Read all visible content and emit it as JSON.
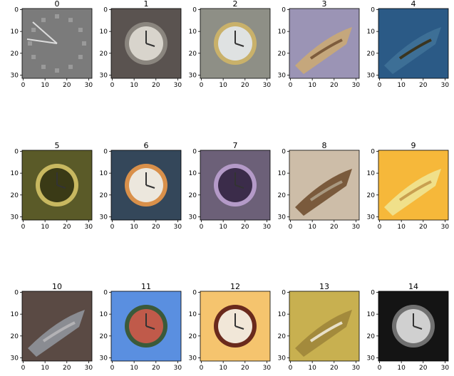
{
  "chart_data": {
    "type": "image-grid",
    "rows": 3,
    "cols": 5,
    "image_size": [
      32,
      32
    ],
    "xticks": [
      0,
      10,
      20,
      30
    ],
    "yticks": [
      0,
      10,
      20,
      30
    ],
    "panels": [
      {
        "title": "0",
        "content": "clock-icon",
        "palette": [
          "#7b7b7b",
          "#9a9a9a",
          "#dcdcdc"
        ]
      },
      {
        "title": "1",
        "content": "clock",
        "palette": [
          "#5a5350",
          "#8a857e",
          "#d8d4cc"
        ]
      },
      {
        "title": "2",
        "content": "clock",
        "palette": [
          "#8e8f86",
          "#c9b16a",
          "#dfe2e2"
        ]
      },
      {
        "title": "3",
        "content": "crocodile",
        "palette": [
          "#9b94b5",
          "#c5a77c",
          "#7d5c3c"
        ]
      },
      {
        "title": "4",
        "content": "crocodile",
        "palette": [
          "#2b5a86",
          "#3d6f96",
          "#3a3520"
        ]
      },
      {
        "title": "5",
        "content": "clock",
        "palette": [
          "#5a5a28",
          "#c8b860",
          "#3a3a16"
        ]
      },
      {
        "title": "6",
        "content": "clock",
        "palette": [
          "#34475a",
          "#d9904a",
          "#ece7dd"
        ]
      },
      {
        "title": "7",
        "content": "clock",
        "palette": [
          "#6c6078",
          "#b49ac8",
          "#3b2c4a"
        ]
      },
      {
        "title": "8",
        "content": "crocodile",
        "palette": [
          "#cdbda8",
          "#7a5a3c",
          "#a89880"
        ]
      },
      {
        "title": "9",
        "content": "crocodile",
        "palette": [
          "#f6b83a",
          "#f0e08a",
          "#c9a050"
        ]
      },
      {
        "title": "10",
        "content": "crocodile",
        "palette": [
          "#5a4a44",
          "#8a8c92",
          "#b3b2b5"
        ]
      },
      {
        "title": "11",
        "content": "street-clock",
        "palette": [
          "#5a8fe0",
          "#3b5a3a",
          "#c05a4a"
        ]
      },
      {
        "title": "12",
        "content": "clock",
        "palette": [
          "#f5c46e",
          "#6a2a1c",
          "#f1e7d8"
        ]
      },
      {
        "title": "13",
        "content": "crocodile",
        "palette": [
          "#c8b050",
          "#a38a3c",
          "#e8e0c8"
        ]
      },
      {
        "title": "14",
        "content": "clock",
        "palette": [
          "#141414",
          "#707070",
          "#d0d0d0"
        ]
      }
    ]
  }
}
